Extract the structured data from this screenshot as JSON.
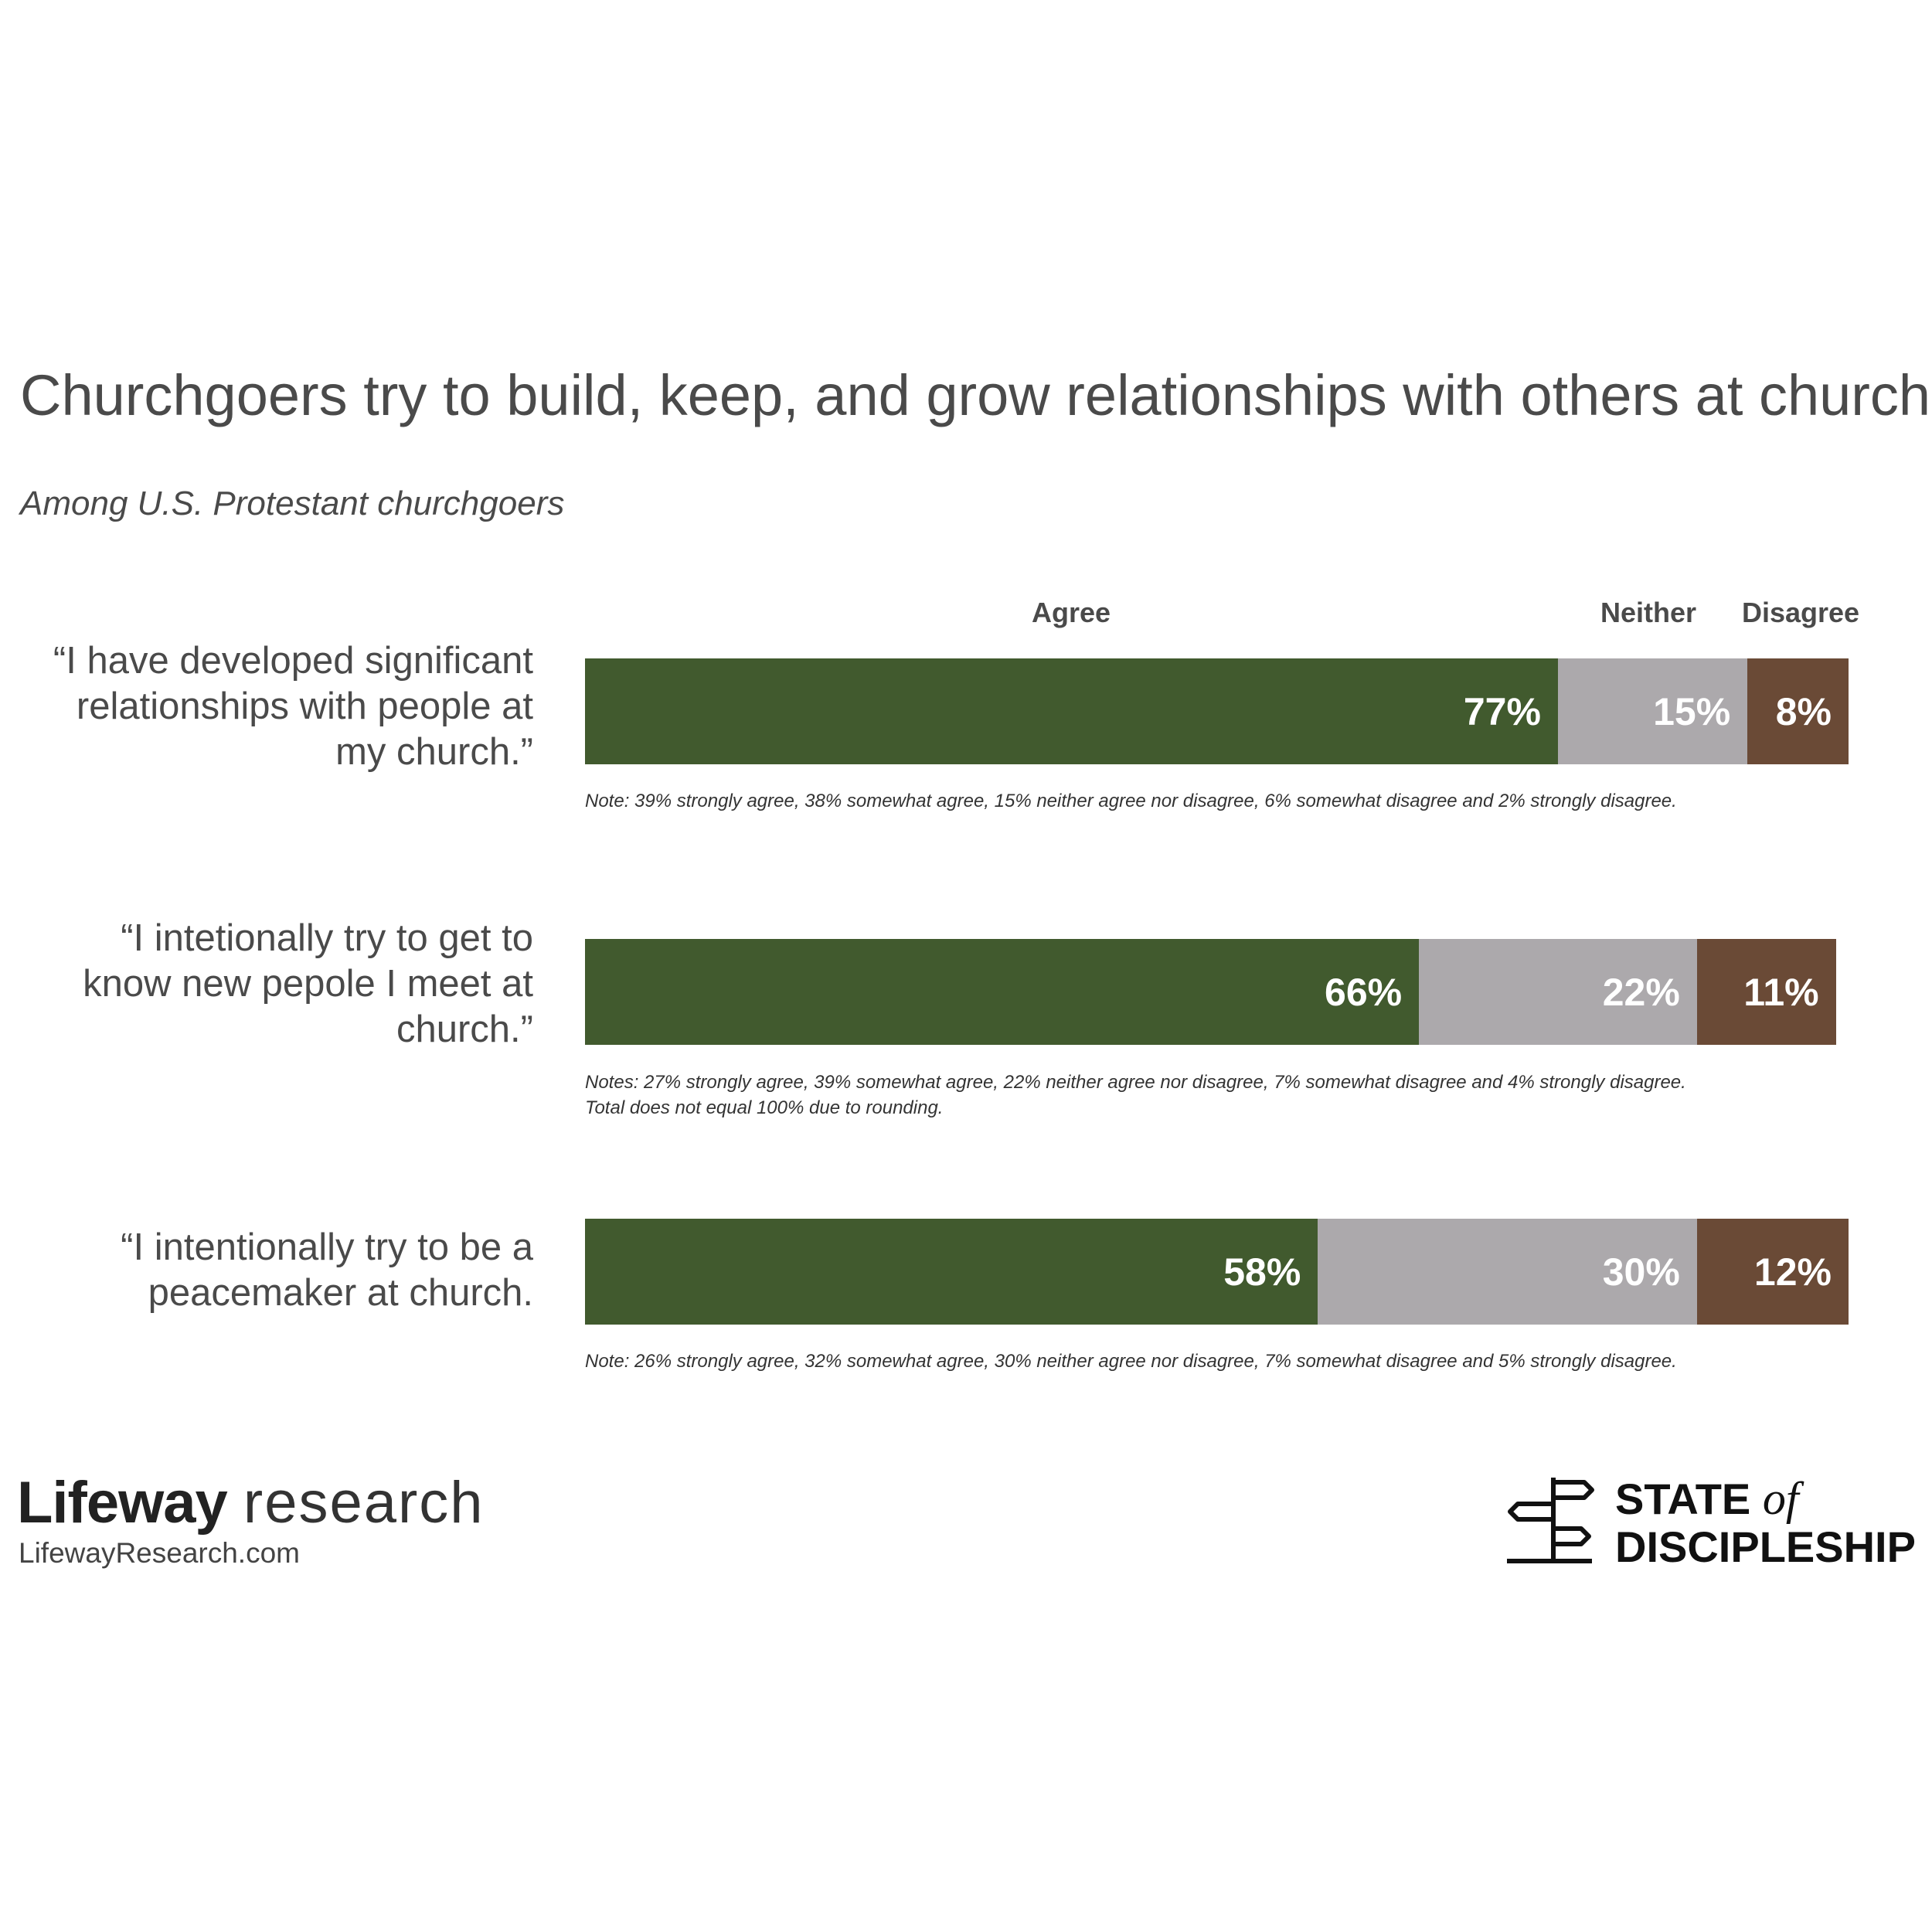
{
  "title": "Churchgoers try to build, keep, and grow relationships with others at church",
  "subtitle": "Among U.S. Protestant churchgoers",
  "colors": {
    "agree": "#415a2e",
    "neither": "#aca9ac",
    "disagree": "#6a4a36"
  },
  "chart_data": {
    "type": "bar",
    "orientation": "horizontal-stacked",
    "legend": [
      "Agree",
      "Neither",
      "Disagree"
    ],
    "categories": [
      "“I have developed significant relationships with people at my church.”",
      "“I intetionally try to get to know new pepole I meet at church.”",
      "“I intentionally try to be a peacemaker at church."
    ],
    "series": [
      {
        "name": "Agree",
        "values": [
          77,
          66,
          58
        ]
      },
      {
        "name": "Neither",
        "values": [
          15,
          22,
          30
        ]
      },
      {
        "name": "Disagree",
        "values": [
          8,
          11,
          12
        ]
      }
    ],
    "value_labels": [
      [
        "77%",
        "15%",
        "8%"
      ],
      [
        "66%",
        "22%",
        "11%"
      ],
      [
        "58%",
        "30%",
        "12%"
      ]
    ],
    "notes": [
      [
        "Note: 39% strongly agree, 38% somewhat agree, 15% neither agree nor disagree, 6% somewhat disagree and 2% strongly disagree."
      ],
      [
        "Notes: 27% strongly agree, 39% somewhat agree, 22% neither agree nor disagree, 7% somewhat disagree and 4% strongly disagree.",
        "Total does not equal 100% due to rounding."
      ],
      [
        "Note: 26% strongly agree, 32% somewhat agree, 30% neither agree nor disagree, 7% somewhat disagree and 5% strongly disagree."
      ]
    ]
  },
  "footer": {
    "brand_bold": "Lifeway",
    "brand_light": "research",
    "brand_url": "LifewayResearch.com",
    "logo_line1": "STATE",
    "logo_of": "of",
    "logo_line2": "DISCIPLESHIP"
  }
}
